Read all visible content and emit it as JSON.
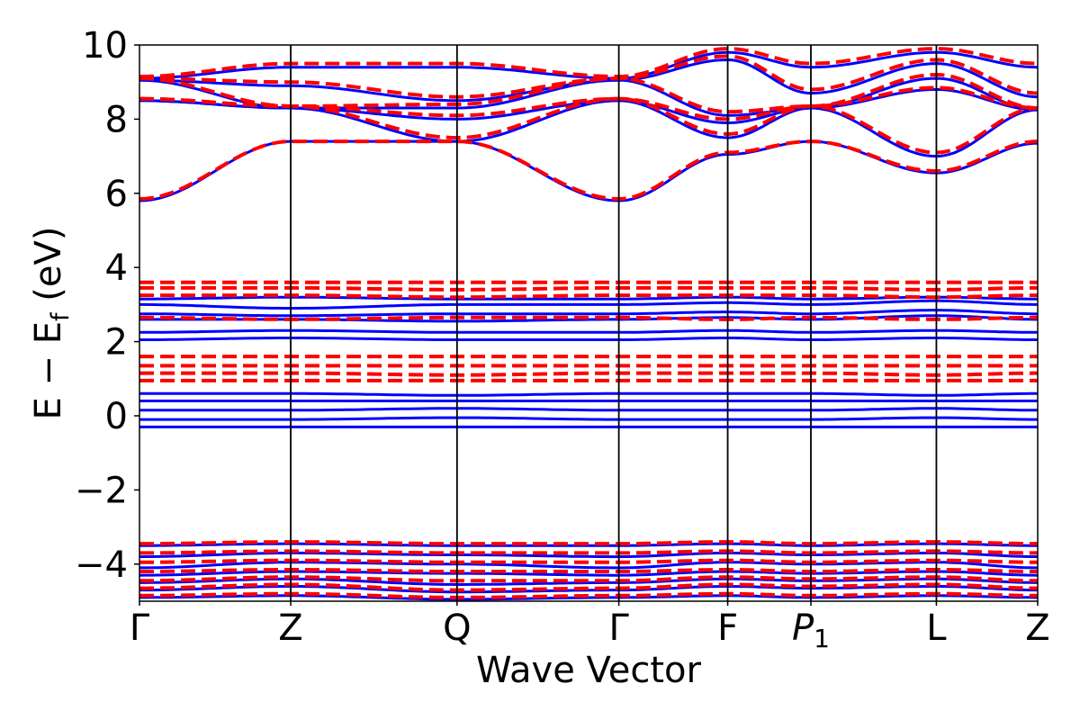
{
  "chart_data": {
    "type": "line",
    "xlabel": "Wave Vector",
    "ylabel": {
      "main": "E − E",
      "sub": "f",
      "unit": " (eV)"
    },
    "ylim": [
      -5,
      10
    ],
    "yticks": [
      {
        "value": -4,
        "label": "−4"
      },
      {
        "value": -2,
        "label": "−2"
      },
      {
        "value": 0,
        "label": "0"
      },
      {
        "value": 2,
        "label": "2"
      },
      {
        "value": 4,
        "label": "4"
      },
      {
        "value": 6,
        "label": "6"
      },
      {
        "value": 8,
        "label": "8"
      },
      {
        "value": 10,
        "label": "10"
      }
    ],
    "kpoints": [
      {
        "label": "Γ",
        "pos": 0.0,
        "italic": false,
        "sub": ""
      },
      {
        "label": "Z",
        "pos": 1.0,
        "italic": false,
        "sub": ""
      },
      {
        "label": "Q",
        "pos": 2.1,
        "italic": false,
        "sub": ""
      },
      {
        "label": "Γ",
        "pos": 3.17,
        "italic": false,
        "sub": ""
      },
      {
        "label": "F",
        "pos": 3.89,
        "italic": false,
        "sub": ""
      },
      {
        "label": "P",
        "pos": 4.44,
        "italic": true,
        "sub": "1"
      },
      {
        "label": "L",
        "pos": 5.27,
        "italic": false,
        "sub": ""
      },
      {
        "label": "Z",
        "pos": 5.94,
        "italic": false,
        "sub": ""
      }
    ],
    "grid": false,
    "colors": {
      "solid": "#0000ff",
      "dashed": "#ff0000",
      "axes": "#000000"
    },
    "series": [
      {
        "style": "solid",
        "bands": [
          {
            "e": [
              5.8,
              7.4,
              7.4,
              5.8,
              7.05,
              7.4,
              6.55,
              7.35
            ]
          },
          {
            "e": [
              8.5,
              8.3,
              7.4,
              8.5,
              7.5,
              8.3,
              7.0,
              8.25
            ]
          },
          {
            "e": [
              8.5,
              8.3,
              8.0,
              8.5,
              7.9,
              8.3,
              8.8,
              8.25
            ]
          },
          {
            "e": [
              9.05,
              8.3,
              8.3,
              9.05,
              8.1,
              8.3,
              9.1,
              8.25
            ]
          },
          {
            "e": [
              9.05,
              8.9,
              8.5,
              9.05,
              9.6,
              8.7,
              9.5,
              8.6
            ]
          },
          {
            "e": [
              9.1,
              9.4,
              9.4,
              9.1,
              9.8,
              9.4,
              9.8,
              9.4
            ]
          },
          {
            "e": [
              -0.3,
              -0.3,
              -0.3,
              -0.3,
              -0.3,
              -0.3,
              -0.3,
              -0.3
            ]
          },
          {
            "e": [
              -0.1,
              -0.1,
              -0.05,
              -0.1,
              -0.1,
              -0.1,
              -0.05,
              -0.1
            ]
          },
          {
            "e": [
              0.15,
              0.15,
              0.2,
              0.15,
              0.15,
              0.15,
              0.2,
              0.15
            ]
          },
          {
            "e": [
              0.4,
              0.4,
              0.4,
              0.4,
              0.4,
              0.4,
              0.4,
              0.4
            ]
          },
          {
            "e": [
              0.6,
              0.6,
              0.55,
              0.6,
              0.6,
              0.6,
              0.55,
              0.6
            ]
          },
          {
            "e": [
              2.05,
              2.1,
              2.05,
              2.05,
              2.1,
              2.05,
              2.1,
              2.05
            ]
          },
          {
            "e": [
              2.25,
              2.3,
              2.25,
              2.25,
              2.3,
              2.25,
              2.3,
              2.25
            ]
          },
          {
            "e": [
              2.6,
              2.6,
              2.55,
              2.6,
              2.65,
              2.6,
              2.7,
              2.6
            ]
          },
          {
            "e": [
              2.75,
              2.7,
              2.75,
              2.75,
              2.8,
              2.75,
              2.85,
              2.75
            ]
          },
          {
            "e": [
              3.0,
              2.9,
              3.0,
              3.0,
              3.05,
              3.0,
              3.1,
              3.0
            ]
          },
          {
            "e": [
              3.15,
              3.2,
              3.15,
              3.15,
              3.2,
              3.15,
              3.2,
              3.15
            ]
          },
          {
            "e": [
              -3.5,
              -3.45,
              -3.5,
              -3.5,
              -3.45,
              -3.5,
              -3.45,
              -3.5
            ]
          },
          {
            "e": [
              -3.8,
              -3.7,
              -3.75,
              -3.8,
              -3.7,
              -3.75,
              -3.7,
              -3.8
            ]
          },
          {
            "e": [
              -4.1,
              -3.95,
              -4.0,
              -4.1,
              -3.95,
              -4.0,
              -3.95,
              -4.1
            ]
          },
          {
            "e": [
              -4.3,
              -4.2,
              -4.25,
              -4.3,
              -4.2,
              -4.25,
              -4.2,
              -4.3
            ]
          },
          {
            "e": [
              -4.5,
              -4.4,
              -4.55,
              -4.5,
              -4.4,
              -4.45,
              -4.4,
              -4.5
            ]
          },
          {
            "e": [
              -4.7,
              -4.6,
              -4.75,
              -4.7,
              -4.6,
              -4.65,
              -4.6,
              -4.7
            ]
          },
          {
            "e": [
              -4.9,
              -4.85,
              -4.95,
              -4.9,
              -4.85,
              -4.9,
              -4.85,
              -4.9
            ]
          }
        ]
      },
      {
        "style": "dashed",
        "bands": [
          {
            "e": [
              5.85,
              7.4,
              7.4,
              5.85,
              7.1,
              7.4,
              6.6,
              7.4
            ]
          },
          {
            "e": [
              8.55,
              8.35,
              7.5,
              8.55,
              7.6,
              8.35,
              7.1,
              8.3
            ]
          },
          {
            "e": [
              8.55,
              8.35,
              8.1,
              8.55,
              8.0,
              8.35,
              8.85,
              8.3
            ]
          },
          {
            "e": [
              9.1,
              8.35,
              8.4,
              9.1,
              8.2,
              8.35,
              9.2,
              8.3
            ]
          },
          {
            "e": [
              9.1,
              9.0,
              8.6,
              9.1,
              9.7,
              8.8,
              9.6,
              8.7
            ]
          },
          {
            "e": [
              9.15,
              9.5,
              9.5,
              9.15,
              9.9,
              9.5,
              9.9,
              9.5
            ]
          },
          {
            "e": [
              0.95,
              0.95,
              0.95,
              0.95,
              0.95,
              0.95,
              0.95,
              0.95
            ]
          },
          {
            "e": [
              1.15,
              1.15,
              1.1,
              1.15,
              1.15,
              1.15,
              1.1,
              1.15
            ]
          },
          {
            "e": [
              1.35,
              1.35,
              1.35,
              1.35,
              1.35,
              1.35,
              1.35,
              1.35
            ]
          },
          {
            "e": [
              1.6,
              1.6,
              1.6,
              1.6,
              1.6,
              1.6,
              1.6,
              1.6
            ]
          },
          {
            "e": [
              2.65,
              2.6,
              2.65,
              2.65,
              2.6,
              2.65,
              2.6,
              2.65
            ]
          },
          {
            "e": [
              3.25,
              3.25,
              3.2,
              3.25,
              3.25,
              3.25,
              3.2,
              3.25
            ]
          },
          {
            "e": [
              3.45,
              3.45,
              3.4,
              3.45,
              3.45,
              3.45,
              3.4,
              3.45
            ]
          },
          {
            "e": [
              3.6,
              3.6,
              3.6,
              3.6,
              3.6,
              3.6,
              3.6,
              3.6
            ]
          },
          {
            "e": [
              -3.45,
              -3.4,
              -3.45,
              -3.45,
              -3.4,
              -3.45,
              -3.4,
              -3.45
            ]
          },
          {
            "e": [
              -3.7,
              -3.65,
              -3.7,
              -3.7,
              -3.65,
              -3.7,
              -3.65,
              -3.7
            ]
          },
          {
            "e": [
              -3.95,
              -3.9,
              -3.95,
              -3.95,
              -3.9,
              -3.95,
              -3.9,
              -3.95
            ]
          },
          {
            "e": [
              -4.2,
              -4.15,
              -4.2,
              -4.2,
              -4.15,
              -4.2,
              -4.15,
              -4.2
            ]
          },
          {
            "e": [
              -4.45,
              -4.35,
              -4.45,
              -4.45,
              -4.35,
              -4.4,
              -4.35,
              -4.45
            ]
          },
          {
            "e": [
              -4.65,
              -4.55,
              -4.7,
              -4.65,
              -4.55,
              -4.6,
              -4.55,
              -4.65
            ]
          },
          {
            "e": [
              -4.85,
              -4.8,
              -4.9,
              -4.85,
              -4.8,
              -4.85,
              -4.8,
              -4.85
            ]
          }
        ]
      }
    ]
  }
}
